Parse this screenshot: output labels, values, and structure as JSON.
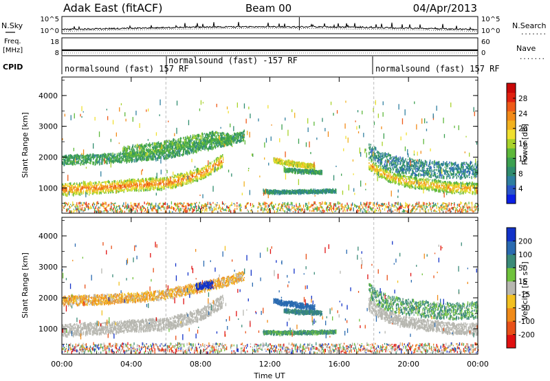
{
  "header": {
    "station": "Adak East (fitACF)",
    "beam": "Beam 00",
    "date": "04/Apr/2013"
  },
  "strip_labels": {
    "nsky": "N.Sky",
    "freq_top": "Freq.",
    "freq_unit": "[MHz]",
    "cpid": "CPID",
    "nsearch": "N.Search",
    "nave": "Nave",
    "dots": "......."
  },
  "noise_axis": {
    "left_ticks": [
      "10^5",
      "10^0"
    ],
    "right_ticks": [
      "10^5",
      "10^0"
    ]
  },
  "freq_axis": {
    "left_ticks": [
      "18",
      "8"
    ],
    "right_ticks": [
      "60",
      "0"
    ]
  },
  "cpid_segments": [
    {
      "label": "normalsound (fast) 157 RF",
      "start": 0.0,
      "end": 6.0
    },
    {
      "label": "normalsound (fast) -157 RF",
      "start": 6.0,
      "end": 18.0
    },
    {
      "label": "normalsound (fast) 157 RF",
      "start": 18.0,
      "end": 24.0
    }
  ],
  "x_axis": {
    "label": "Time UT",
    "ticks": [
      "00:00",
      "04:00",
      "08:00",
      "12:00",
      "16:00",
      "20:00",
      "00:00"
    ],
    "tick_hours": [
      0,
      4,
      8,
      12,
      16,
      20,
      24
    ]
  },
  "y_axis": {
    "label": "Slant Range [km]",
    "ticks": [
      "1000",
      "2000",
      "3000",
      "4000"
    ],
    "tick_values": [
      1000,
      2000,
      3000,
      4000
    ],
    "range": [
      180,
      4600
    ]
  },
  "power_colorbar": {
    "label": "Power [dB]",
    "ticks": [
      "4",
      "8",
      "12",
      "16",
      "20",
      "24",
      "28"
    ],
    "tick_values": [
      4,
      8,
      12,
      16,
      20,
      24,
      28
    ],
    "range": [
      0,
      32
    ],
    "colors": [
      "#0b20e6",
      "#2a56c8",
      "#2f7fa0",
      "#2f8c6e",
      "#3ca050",
      "#5db83a",
      "#a8d22a",
      "#f0e030",
      "#f2b21f",
      "#f28a18",
      "#ee5a18",
      "#e02010",
      "#c80808"
    ]
  },
  "velocity_colorbar": {
    "label": "Velocity [m s⁻¹]",
    "ticks": [
      "200",
      "100",
      "50",
      "15",
      "-15",
      "-50",
      "-100",
      "-200"
    ],
    "colors": [
      "#1232c8",
      "#2a6ab0",
      "#3a8a78",
      "#6fc23c",
      "#b7b7b0",
      "#f2c020",
      "#f08a18",
      "#e85018",
      "#e01010"
    ]
  },
  "chart_data": [
    {
      "type": "heatmap",
      "title": "",
      "xlabel": "Time UT",
      "ylabel": "Slant Range [km]",
      "colorbar_label": "Power [dB]",
      "xlim": [
        0,
        24
      ],
      "ylim": [
        180,
        4600
      ],
      "features": [
        {
          "name": "ground scatter band",
          "t": [
            0,
            2,
            4,
            6,
            7,
            8.2,
            9.3
          ],
          "r": [
            950,
            1000,
            1080,
            1150,
            1280,
            1500,
            1900
          ],
          "width_km": 240,
          "power_db": [
            26,
            20,
            14
          ]
        },
        {
          "name": "upper band",
          "t": [
            0,
            2,
            4,
            6,
            7.2,
            8.5,
            9.6,
            10.5
          ],
          "r": [
            1900,
            1930,
            2000,
            2100,
            2250,
            2400,
            2550,
            2700
          ],
          "width_km": 190,
          "power_db": 10
        },
        {
          "name": "high structures",
          "t": [
            3.5,
            5,
            6.5,
            7.7,
            8.8,
            9.8
          ],
          "r": [
            2150,
            2250,
            2400,
            2550,
            2650,
            2550
          ],
          "width_km": 220,
          "power_db": 12
        },
        {
          "name": "midday patch 1",
          "t": [
            12.2,
            12.8,
            13.4,
            14,
            14.6
          ],
          "r": [
            1900,
            1820,
            1780,
            1720,
            1680
          ],
          "width_km": 90,
          "power_db": 18
        },
        {
          "name": "midday patch 2",
          "t": [
            12.8,
            13.6,
            14.4,
            15
          ],
          "r": [
            1580,
            1540,
            1520,
            1500
          ],
          "width_km": 70,
          "power_db": 10
        },
        {
          "name": "midday patch 3",
          "t": [
            11.6,
            12.5,
            13.5,
            14.5,
            15.8
          ],
          "r": [
            880,
            860,
            870,
            880,
            900
          ],
          "width_km": 60,
          "power_db": 8
        },
        {
          "name": "evening upper band",
          "t": [
            17.7,
            18.4,
            19.4,
            20.5,
            21.7,
            23,
            24
          ],
          "r": [
            2200,
            1900,
            1750,
            1650,
            1580,
            1560,
            1600
          ],
          "width_km": 320,
          "power_db": 7
        },
        {
          "name": "evening ground scatter",
          "t": [
            17.7,
            18.5,
            19.5,
            20.5,
            21.5,
            22.5,
            24
          ],
          "r": [
            1750,
            1450,
            1250,
            1150,
            1080,
            1000,
            980
          ],
          "width_km": 220,
          "power_db": [
            24,
            18,
            12
          ]
        },
        {
          "name": "near range clutter",
          "r_range": [
            200,
            520
          ],
          "power_db": "mixed"
        }
      ]
    },
    {
      "type": "heatmap",
      "title": "",
      "xlabel": "Time UT",
      "ylabel": "Slant Range [km]",
      "colorbar_label": "Velocity [m s⁻¹]",
      "xlim": [
        0,
        24
      ],
      "ylim": [
        180,
        4600
      ],
      "features": [
        {
          "name": "ground scatter band",
          "t": [
            0,
            2,
            4,
            6,
            7,
            8.2,
            9.3
          ],
          "r": [
            950,
            1000,
            1080,
            1150,
            1280,
            1500,
            1900
          ],
          "width_km": 240,
          "velocity": 0
        },
        {
          "name": "upper band",
          "t": [
            0,
            2,
            4,
            6,
            7.2,
            8.5,
            9.6,
            10.5
          ],
          "r": [
            1900,
            1930,
            2000,
            2100,
            2250,
            2400,
            2550,
            2700
          ],
          "width_km": 190,
          "velocity": -30
        },
        {
          "name": "blue patch",
          "t": [
            7.7,
            8.2,
            8.7
          ],
          "r": [
            2350,
            2400,
            2420
          ],
          "width_km": 140,
          "velocity": 200
        },
        {
          "name": "midday patch 1",
          "t": [
            12.2,
            12.8,
            13.4,
            14,
            14.6
          ],
          "r": [
            1900,
            1820,
            1780,
            1720,
            1680
          ],
          "width_km": 90,
          "velocity": 100
        },
        {
          "name": "midday patch 2",
          "t": [
            12.8,
            13.6,
            14.4,
            15
          ],
          "r": [
            1580,
            1540,
            1520,
            1500
          ],
          "width_km": 70,
          "velocity": 60
        },
        {
          "name": "midday patch 3",
          "t": [
            11.6,
            12.5,
            13.5,
            14.5,
            15.8
          ],
          "r": [
            880,
            860,
            870,
            880,
            900
          ],
          "width_km": 60,
          "velocity": 40
        },
        {
          "name": "evening upper band",
          "t": [
            17.7,
            18.4,
            19.4,
            20.5,
            21.7,
            23,
            24
          ],
          "r": [
            2200,
            1900,
            1750,
            1650,
            1580,
            1560,
            1600
          ],
          "width_km": 320,
          "velocity": 35
        },
        {
          "name": "evening ground scatter",
          "t": [
            17.7,
            18.5,
            19.5,
            20.5,
            21.5,
            22.5,
            24
          ],
          "r": [
            1750,
            1450,
            1250,
            1150,
            1080,
            1000,
            980
          ],
          "width_km": 220,
          "velocity": 0
        }
      ]
    }
  ]
}
